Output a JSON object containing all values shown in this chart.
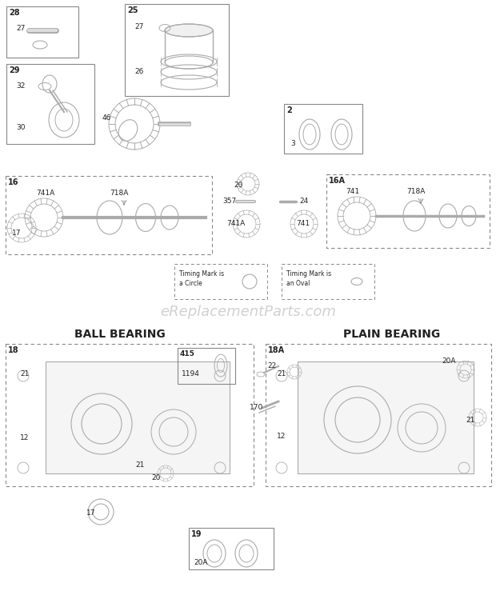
{
  "bg_color": "#ffffff",
  "text_color": "#222222",
  "part_color": "#888888",
  "sketch_color": "#aaaaaa",
  "watermark_color": "#cccccc",
  "watermark_text": "eReplacementParts.com",
  "title_ball": "BALL BEARING",
  "title_plain": "PLAIN BEARING"
}
